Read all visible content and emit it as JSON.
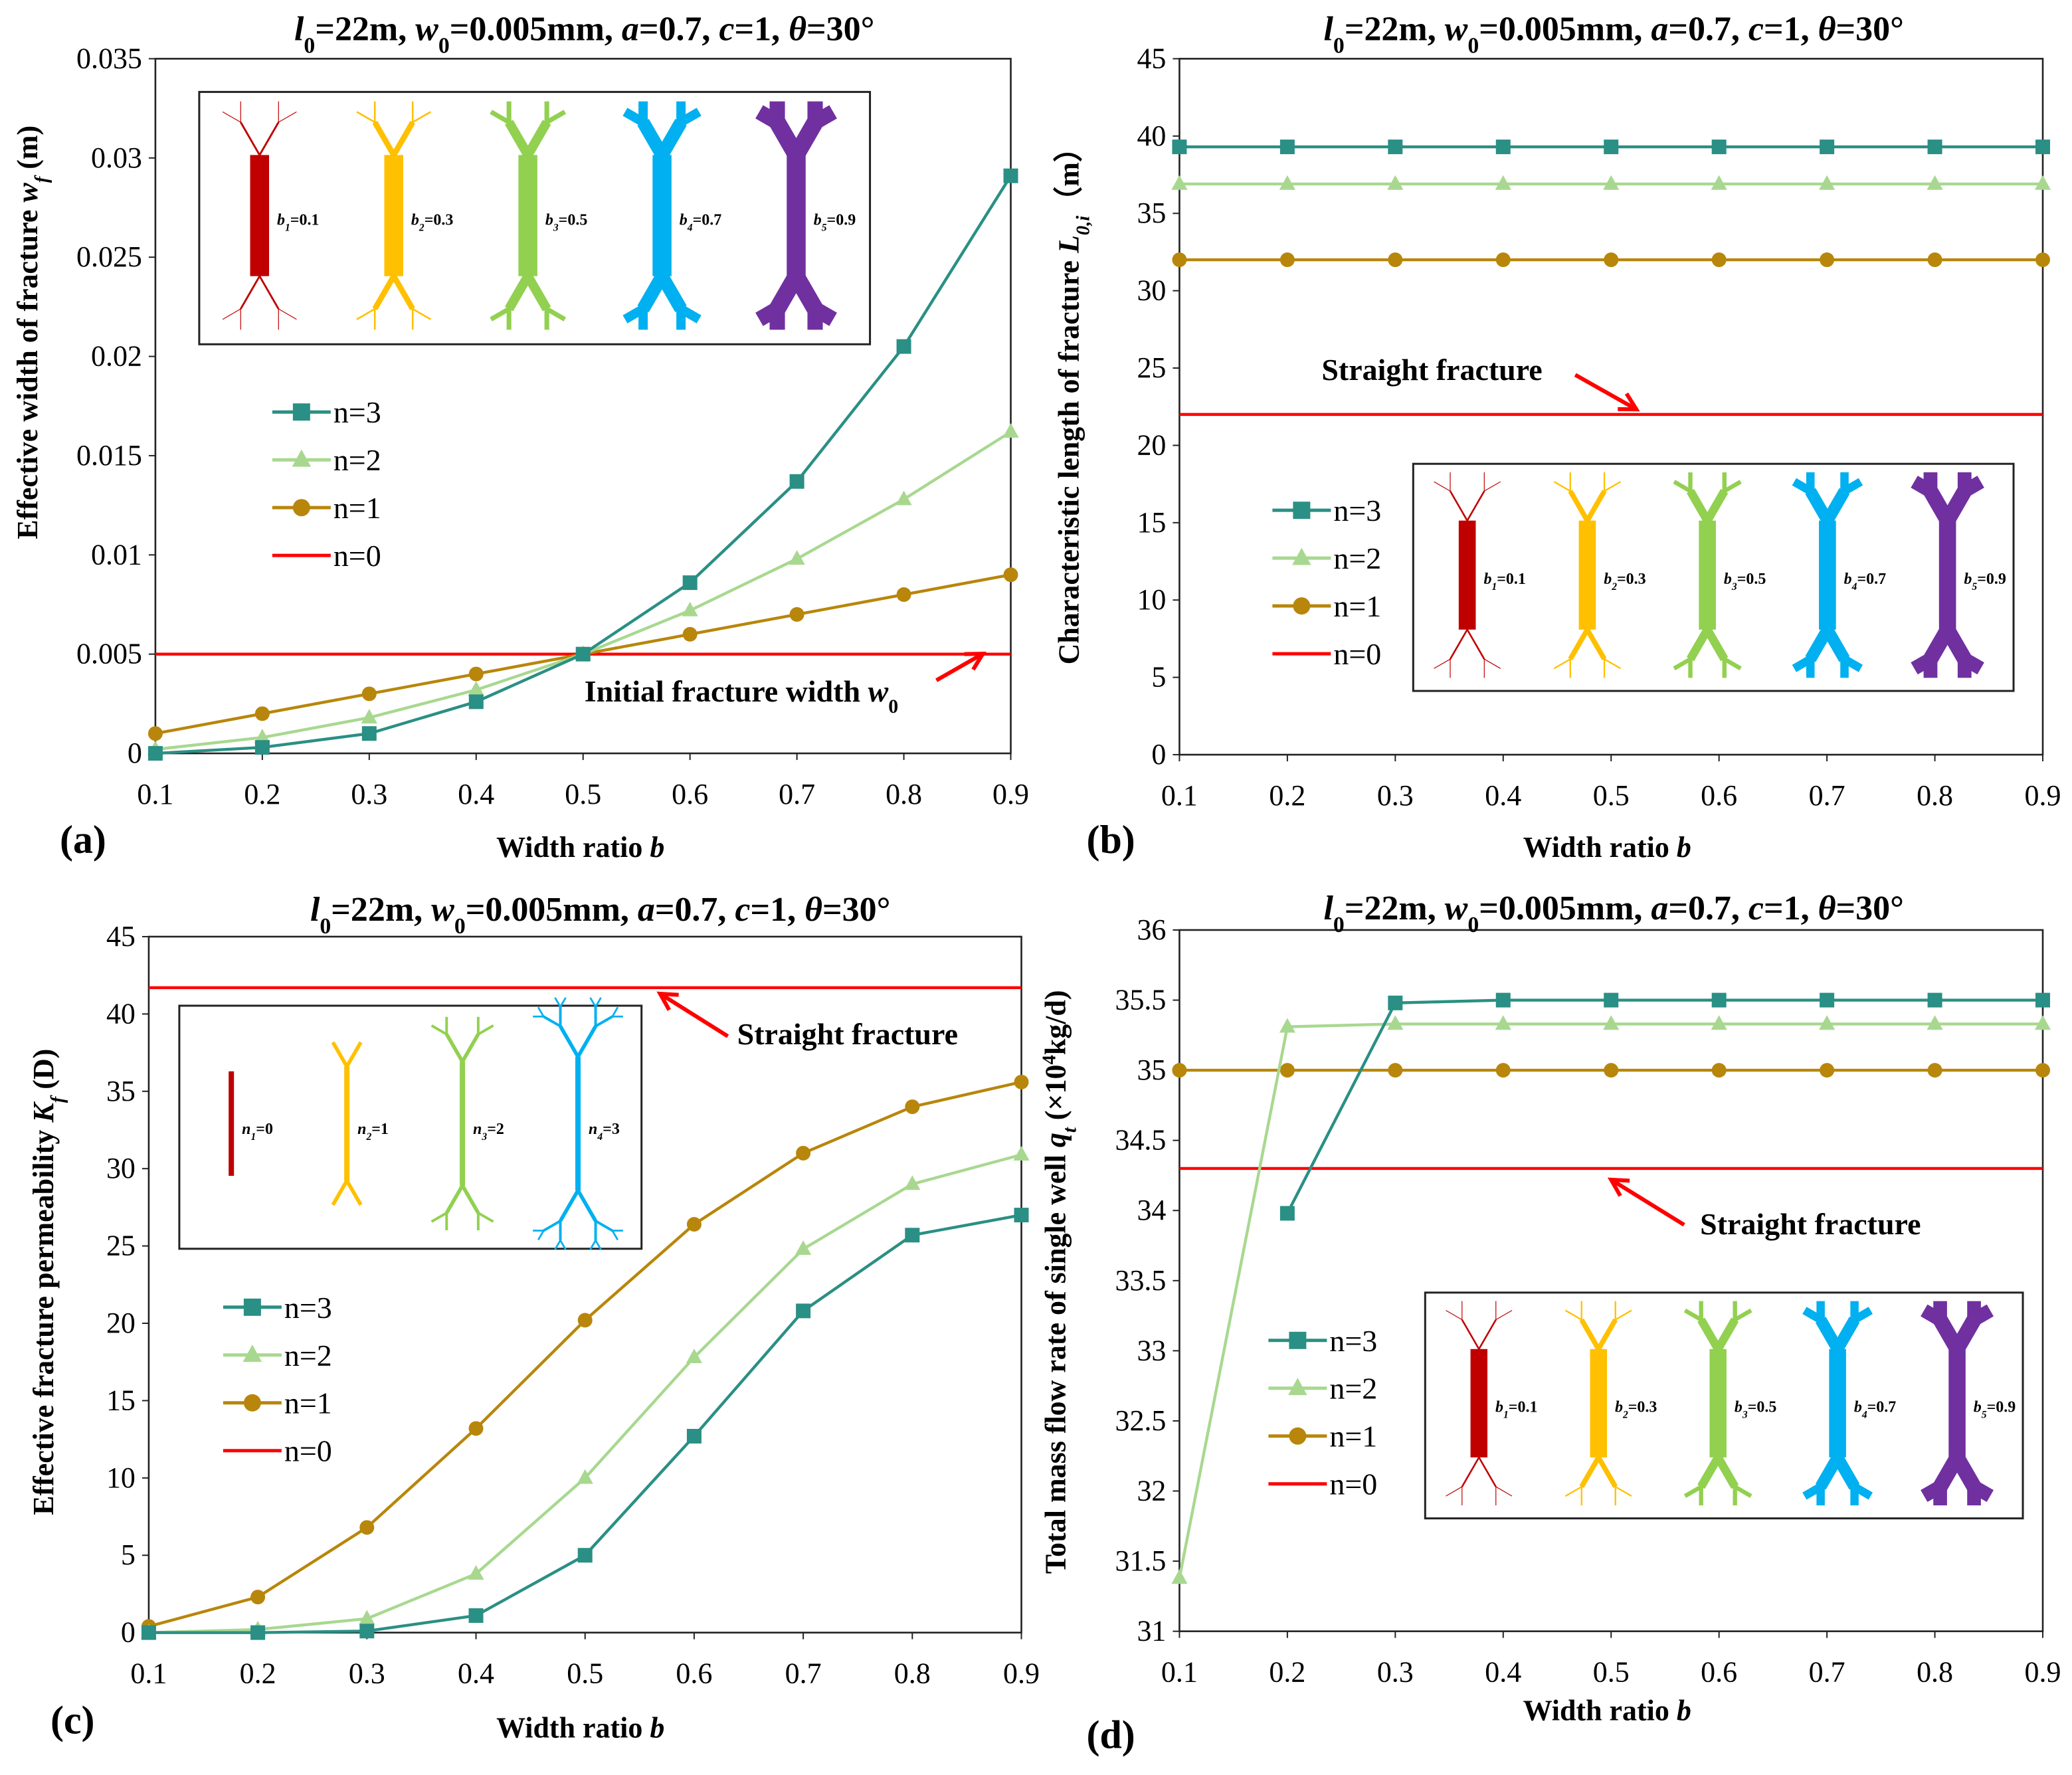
{
  "colors": {
    "n3": "#2a8f84",
    "n2": "#a8d890",
    "n1": "#b8860b",
    "n0": "#ff0000",
    "glyphs": [
      "#c00000",
      "#ffc000",
      "#92d050",
      "#00b0f0",
      "#7030a0"
    ]
  },
  "chart_data": [
    {
      "type": "line",
      "panel": "(a)",
      "title": [
        {
          "t": "l",
          "i": true
        },
        {
          "t": "0",
          "sub": true
        },
        {
          "t": "=22m, "
        },
        {
          "t": "w",
          "i": true
        },
        {
          "t": "0",
          "sub": true
        },
        {
          "t": "=0.005mm, "
        },
        {
          "t": "a",
          "i": true
        },
        {
          "t": "=0.7, "
        },
        {
          "t": "c",
          "i": true
        },
        {
          "t": "=1, "
        },
        {
          "t": "θ",
          "i": true
        },
        {
          "t": "=30°"
        }
      ],
      "xlabel": [
        {
          "t": "Width ratio "
        },
        {
          "t": "b",
          "i": true
        }
      ],
      "ylabel": [
        {
          "t": "Effective width of fracture "
        },
        {
          "t": "w",
          "i": true
        },
        {
          "t": "f",
          "sub": true,
          "i": true
        },
        {
          "t": " (m)"
        }
      ],
      "x": [
        0.1,
        0.2,
        0.3,
        0.4,
        0.5,
        0.6,
        0.7,
        0.8,
        0.9
      ],
      "xticks": [
        "0.1",
        "0.2",
        "0.3",
        "0.4",
        "0.5",
        "0.6",
        "0.7",
        "0.8",
        "0.9"
      ],
      "ylim": [
        0,
        0.035
      ],
      "yticks": [
        "0",
        "0.005",
        "0.01",
        "0.015",
        "0.02",
        "0.025",
        "0.03",
        "0.035"
      ],
      "series": [
        {
          "name": "n=3",
          "marker": "square",
          "values": [
            0,
            0.0003,
            0.001,
            0.0026,
            0.005,
            0.0086,
            0.0137,
            0.0205,
            0.0291
          ]
        },
        {
          "name": "n=2",
          "marker": "triangle",
          "values": [
            0.0002,
            0.0008,
            0.0018,
            0.0032,
            0.005,
            0.0072,
            0.0098,
            0.0128,
            0.0162
          ]
        },
        {
          "name": "n=1",
          "marker": "circle",
          "values": [
            0.001,
            0.002,
            0.003,
            0.004,
            0.005,
            0.006,
            0.007,
            0.008,
            0.009
          ]
        },
        {
          "name": "n=0",
          "marker": "none",
          "values": [
            0.005,
            0.005,
            0.005,
            0.005,
            0.005,
            0.005,
            0.005,
            0.005,
            0.005
          ]
        }
      ],
      "annotation": [
        {
          "t": "Initial fracture width "
        },
        {
          "t": "w",
          "i": true
        },
        {
          "t": "0",
          "sub": true
        }
      ],
      "inset": {
        "kind": "width",
        "labels": [
          [
            "b",
            "1",
            "=0.1"
          ],
          [
            "b",
            "2",
            "=0.3"
          ],
          [
            "b",
            "3",
            "=0.5"
          ],
          [
            "b",
            "4",
            "=0.7"
          ],
          [
            "b",
            "5",
            "=0.9"
          ]
        ],
        "ratios": [
          0.1,
          0.3,
          0.5,
          0.7,
          0.9
        ]
      }
    },
    {
      "type": "line",
      "panel": "(b)",
      "title": [
        {
          "t": "l",
          "i": true
        },
        {
          "t": "0",
          "sub": true
        },
        {
          "t": "=22m, "
        },
        {
          "t": "w",
          "i": true
        },
        {
          "t": "0",
          "sub": true
        },
        {
          "t": "=0.005mm, "
        },
        {
          "t": "a",
          "i": true
        },
        {
          "t": "=0.7, "
        },
        {
          "t": "c",
          "i": true
        },
        {
          "t": "=1, "
        },
        {
          "t": "θ",
          "i": true
        },
        {
          "t": "=30°"
        }
      ],
      "xlabel": [
        {
          "t": "Width ratio "
        },
        {
          "t": "b",
          "i": true
        }
      ],
      "ylabel": [
        {
          "t": "Characteristic length of fracture "
        },
        {
          "t": "L",
          "i": true
        },
        {
          "t": "0,i",
          "sub": true,
          "i": true
        },
        {
          "t": "（m）"
        }
      ],
      "x": [
        0.1,
        0.2,
        0.3,
        0.4,
        0.5,
        0.6,
        0.7,
        0.8,
        0.9
      ],
      "xticks": [
        "0.1",
        "0.2",
        "0.3",
        "0.4",
        "0.5",
        "0.6",
        "0.7",
        "0.8",
        "0.9"
      ],
      "ylim": [
        0,
        45
      ],
      "yticks": [
        "0",
        "5",
        "10",
        "15",
        "20",
        "25",
        "30",
        "35",
        "40",
        "45"
      ],
      "series": [
        {
          "name": "n=3",
          "marker": "square",
          "values": [
            39.3,
            39.3,
            39.3,
            39.3,
            39.3,
            39.3,
            39.3,
            39.3,
            39.3
          ]
        },
        {
          "name": "n=2",
          "marker": "triangle",
          "values": [
            36.9,
            36.9,
            36.9,
            36.9,
            36.9,
            36.9,
            36.9,
            36.9,
            36.9
          ]
        },
        {
          "name": "n=1",
          "marker": "circle",
          "values": [
            32,
            32,
            32,
            32,
            32,
            32,
            32,
            32,
            32
          ]
        },
        {
          "name": "n=0",
          "marker": "none",
          "values": [
            22,
            22,
            22,
            22,
            22,
            22,
            22,
            22,
            22
          ]
        }
      ],
      "annotation": [
        {
          "t": "Straight fracture"
        }
      ],
      "inset": {
        "kind": "width",
        "labels": [
          [
            "b",
            "1",
            "=0.1"
          ],
          [
            "b",
            "2",
            "=0.3"
          ],
          [
            "b",
            "3",
            "=0.5"
          ],
          [
            "b",
            "4",
            "=0.7"
          ],
          [
            "b",
            "5",
            "=0.9"
          ]
        ],
        "ratios": [
          0.1,
          0.3,
          0.5,
          0.7,
          0.9
        ]
      }
    },
    {
      "type": "line",
      "panel": "(c)",
      "title": [
        {
          "t": "l",
          "i": true
        },
        {
          "t": "0",
          "sub": true
        },
        {
          "t": "=22m, "
        },
        {
          "t": "w",
          "i": true
        },
        {
          "t": "0",
          "sub": true
        },
        {
          "t": "=0.005mm, "
        },
        {
          "t": "a",
          "i": true
        },
        {
          "t": "=0.7, "
        },
        {
          "t": "c",
          "i": true
        },
        {
          "t": "=1, "
        },
        {
          "t": "θ",
          "i": true
        },
        {
          "t": "=30°"
        }
      ],
      "xlabel": [
        {
          "t": "Width ratio "
        },
        {
          "t": "b",
          "i": true
        }
      ],
      "ylabel": [
        {
          "t": "Effective fracture permeability "
        },
        {
          "t": "K",
          "i": true
        },
        {
          "t": "f",
          "sub": true,
          "i": true
        },
        {
          "t": " (D)"
        }
      ],
      "x": [
        0.1,
        0.2,
        0.3,
        0.4,
        0.5,
        0.6,
        0.7,
        0.8,
        0.9
      ],
      "xticks": [
        "0.1",
        "0.2",
        "0.3",
        "0.4",
        "0.5",
        "0.6",
        "0.7",
        "0.8",
        "0.9"
      ],
      "ylim": [
        0,
        45
      ],
      "yticks": [
        "0",
        "5",
        "10",
        "15",
        "20",
        "25",
        "30",
        "35",
        "40",
        "45"
      ],
      "series": [
        {
          "name": "n=3",
          "marker": "square",
          "values": [
            0,
            0,
            0.1,
            1.1,
            5,
            12.7,
            20.8,
            25.7,
            27
          ]
        },
        {
          "name": "n=2",
          "marker": "triangle",
          "values": [
            0,
            0.2,
            0.9,
            3.8,
            10,
            17.8,
            24.8,
            29,
            30.9
          ]
        },
        {
          "name": "n=1",
          "marker": "circle",
          "values": [
            0.4,
            2.3,
            6.8,
            13.2,
            20.2,
            26.4,
            31,
            34,
            35.6
          ]
        },
        {
          "name": "n=0",
          "marker": "none",
          "values": [
            41.7,
            41.7,
            41.7,
            41.7,
            41.7,
            41.7,
            41.7,
            41.7,
            41.7
          ]
        }
      ],
      "annotation": [
        {
          "t": "Straight fracture"
        }
      ],
      "inset": {
        "kind": "order",
        "labels": [
          [
            "n",
            "1",
            "=0"
          ],
          [
            "n",
            "2",
            "=1"
          ],
          [
            "n",
            "3",
            "=2"
          ],
          [
            "n",
            "4",
            "=3"
          ]
        ],
        "orders": [
          0,
          1,
          2,
          3
        ]
      }
    },
    {
      "type": "line",
      "panel": "(d)",
      "title": [
        {
          "t": "l",
          "i": true
        },
        {
          "t": "0",
          "sub": true
        },
        {
          "t": "=22m, "
        },
        {
          "t": "w",
          "i": true
        },
        {
          "t": "0",
          "sub": true
        },
        {
          "t": "=0.005mm, "
        },
        {
          "t": "a",
          "i": true
        },
        {
          "t": "=0.7, "
        },
        {
          "t": "c",
          "i": true
        },
        {
          "t": "=1, "
        },
        {
          "t": "θ",
          "i": true
        },
        {
          "t": "=30°"
        }
      ],
      "xlabel": [
        {
          "t": "Width ratio "
        },
        {
          "t": "b",
          "i": true
        }
      ],
      "ylabel": [
        {
          "t": "Total mass flow rate of single well "
        },
        {
          "t": "q",
          "i": true
        },
        {
          "t": "t",
          "sub": true,
          "i": true
        },
        {
          "t": " (×10"
        },
        {
          "t": "4",
          "sup": true
        },
        {
          "t": "kg/d)"
        }
      ],
      "x": [
        0.1,
        0.2,
        0.3,
        0.4,
        0.5,
        0.6,
        0.7,
        0.8,
        0.9
      ],
      "xticks": [
        "0.1",
        "0.2",
        "0.3",
        "0.4",
        "0.5",
        "0.6",
        "0.7",
        "0.8",
        "0.9"
      ],
      "ylim": [
        31,
        36
      ],
      "yticks": [
        "31",
        "31.5",
        "32",
        "32.5",
        "33",
        "33.5",
        "34",
        "34.5",
        "35",
        "35.5",
        "36"
      ],
      "series": [
        {
          "name": "n=3",
          "marker": "square",
          "values": [
            null,
            33.98,
            35.48,
            35.5,
            35.5,
            35.5,
            35.5,
            35.5,
            35.5
          ]
        },
        {
          "name": "n=2",
          "marker": "triangle",
          "values": [
            31.38,
            35.31,
            35.33,
            35.33,
            35.33,
            35.33,
            35.33,
            35.33,
            35.33
          ]
        },
        {
          "name": "n=1",
          "marker": "circle",
          "values": [
            35.0,
            35.0,
            35.0,
            35.0,
            35.0,
            35.0,
            35.0,
            35.0,
            35.0
          ]
        },
        {
          "name": "n=0",
          "marker": "none",
          "values": [
            34.3,
            34.3,
            34.3,
            34.3,
            34.3,
            34.3,
            34.3,
            34.3,
            34.3
          ]
        }
      ],
      "annotation": [
        {
          "t": "Straight fracture"
        }
      ],
      "inset": {
        "kind": "width",
        "labels": [
          [
            "b",
            "1",
            "=0.1"
          ],
          [
            "b",
            "2",
            "=0.3"
          ],
          [
            "b",
            "3",
            "=0.5"
          ],
          [
            "b",
            "4",
            "=0.7"
          ],
          [
            "b",
            "5",
            "=0.9"
          ]
        ],
        "ratios": [
          0.1,
          0.3,
          0.5,
          0.7,
          0.9
        ]
      }
    }
  ]
}
